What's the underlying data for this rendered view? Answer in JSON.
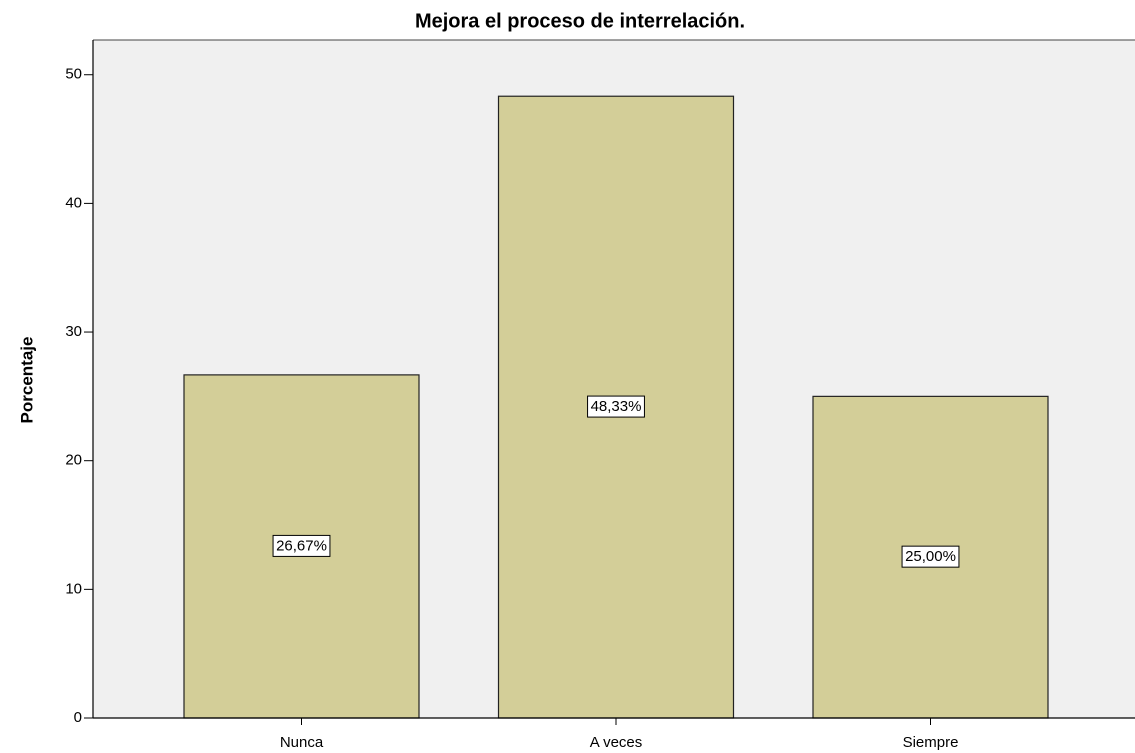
{
  "chart_data": {
    "type": "bar",
    "title": "Mejora el proceso de interrelación.",
    "y_label": "Porcentaje",
    "categories": [
      "Nunca",
      "A veces",
      "Siempre"
    ],
    "values": [
      26.67,
      48.33,
      25.0
    ],
    "value_labels": [
      "26,67%",
      "48,33%",
      "25,00%"
    ],
    "color": "#d3ce98",
    "ylim": [
      0,
      52.7
    ],
    "yticks": [
      0,
      10,
      20,
      30,
      40,
      50
    ],
    "grid": false
  }
}
